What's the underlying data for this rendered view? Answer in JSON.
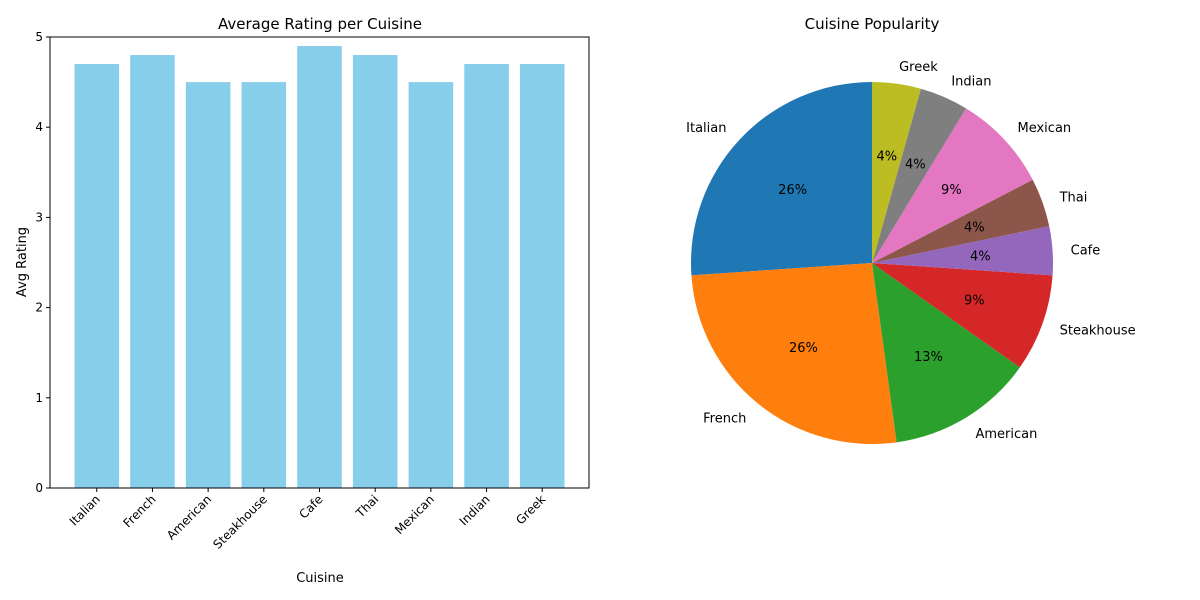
{
  "chart_data": [
    {
      "type": "bar",
      "title": "Average Rating per Cuisine",
      "xlabel": "Cuisine",
      "ylabel": "Avg Rating",
      "categories": [
        "Italian",
        "French",
        "American",
        "Steakhouse",
        "Cafe",
        "Thai",
        "Mexican",
        "Indian",
        "Greek"
      ],
      "values": [
        4.7,
        4.8,
        4.5,
        4.5,
        4.9,
        4.8,
        4.5,
        4.7,
        4.7
      ],
      "ylim": [
        0,
        5
      ],
      "yticks": [
        0,
        1,
        2,
        3,
        4,
        5
      ],
      "grid": false,
      "bar_color": "#87ceeb"
    },
    {
      "type": "pie",
      "title": "Cuisine Popularity",
      "labels": [
        "Italian",
        "French",
        "American",
        "Steakhouse",
        "Cafe",
        "Thai",
        "Mexican",
        "Indian",
        "Greek"
      ],
      "values": [
        6,
        6,
        3,
        2,
        1,
        1,
        2,
        1,
        1
      ],
      "percent_labels": [
        "26%",
        "26%",
        "13%",
        "9%",
        "4%",
        "4%",
        "9%",
        "4%",
        "4%"
      ],
      "colors": [
        "#1f77b4",
        "#ff7f0e",
        "#2ca02c",
        "#d62728",
        "#9467bd",
        "#8c564b",
        "#e377c2",
        "#7f7f7f",
        "#bcbd22"
      ],
      "start_angle_deg": 90,
      "direction": "counterclockwise"
    }
  ]
}
